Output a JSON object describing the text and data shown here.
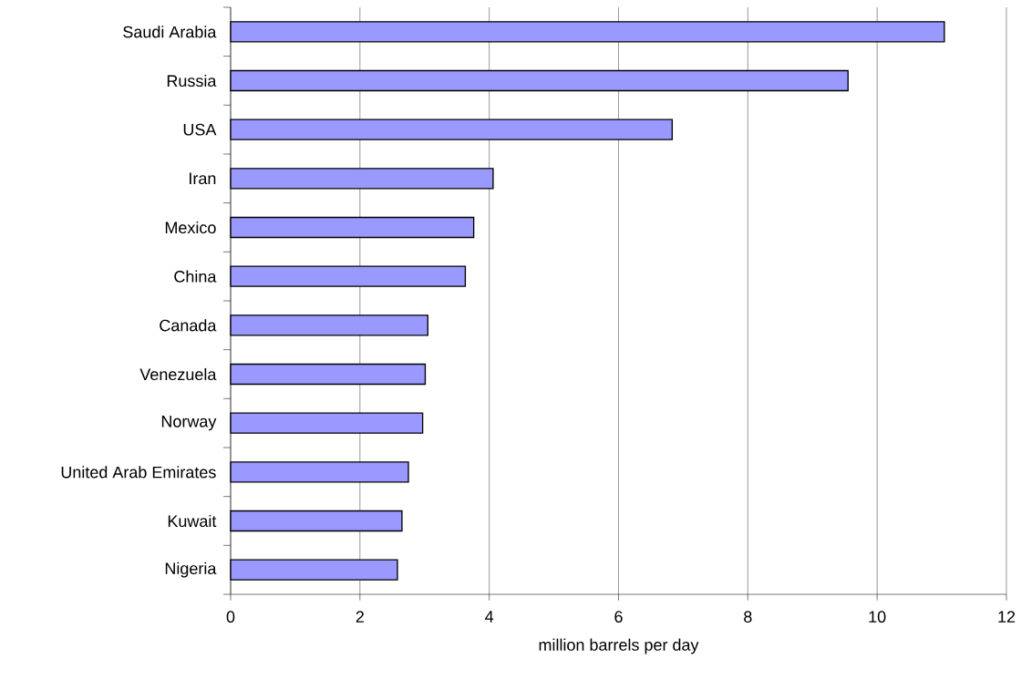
{
  "chart_data": {
    "type": "bar",
    "orientation": "horizontal",
    "categories": [
      "Saudi Arabia",
      "Russia",
      "USA",
      "Iran",
      "Mexico",
      "China",
      "Canada",
      "Venezuela",
      "Norway",
      "United Arab Emirates",
      "Kuwait",
      "Nigeria"
    ],
    "values": [
      11.04,
      9.55,
      6.83,
      4.06,
      3.76,
      3.63,
      3.05,
      3.01,
      2.97,
      2.75,
      2.65,
      2.58
    ],
    "color": "#9999ff",
    "xlabel": "million barrels per day",
    "xlim": [
      0,
      12
    ],
    "xticks": [
      0,
      2,
      4,
      6,
      8,
      10,
      12
    ],
    "grid": "x"
  }
}
